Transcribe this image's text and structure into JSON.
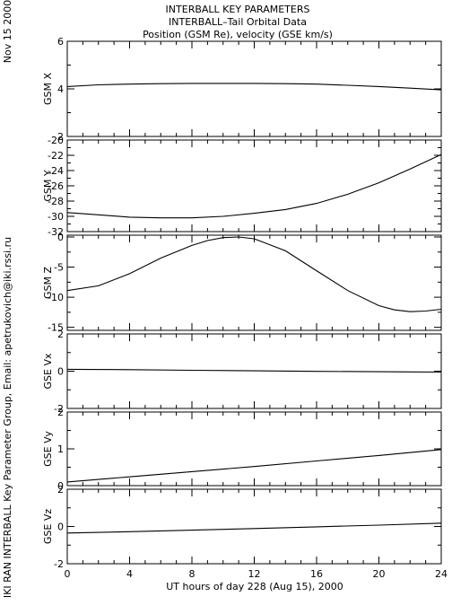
{
  "header": {
    "title": "INTERBALL KEY PARAMETERS",
    "subtitle": "INTERBALL–Tail Orbital Data",
    "subtitle2": "Position (GSM Re), velocity (GSE km/s)"
  },
  "side_date": "Nov 15 2000",
  "side_credit": "IKI RAN INTERBALL Key Parameter Group, Email: apetrukovich@iki.rssi.ru",
  "chart_data": {
    "type": "line",
    "xlabel": "UT hours of day 228 (Aug 15), 2000",
    "xlim": [
      0,
      24
    ],
    "xticks": [
      0,
      4,
      8,
      12,
      16,
      20,
      24
    ],
    "xminor_step": 1,
    "panels": [
      {
        "ylabel": "GSM X",
        "ylim": [
          2,
          6
        ],
        "yticks": [
          2,
          4,
          6
        ],
        "yminor": [
          3,
          5
        ],
        "x": [
          0,
          2,
          4,
          6,
          8,
          10,
          12,
          14,
          16,
          18,
          20,
          22,
          24
        ],
        "y": [
          4.1,
          4.17,
          4.2,
          4.22,
          4.23,
          4.23,
          4.23,
          4.22,
          4.2,
          4.15,
          4.1,
          4.03,
          3.96
        ]
      },
      {
        "ylabel": "GSM Y",
        "ylim": [
          -32,
          -20
        ],
        "yticks": [
          -32,
          -30,
          -28,
          -26,
          -24,
          -22,
          -20
        ],
        "yminor": [
          -31,
          -29,
          -27,
          -25,
          -23,
          -21
        ],
        "x": [
          0,
          2,
          4,
          6,
          8,
          10,
          12,
          14,
          16,
          18,
          20,
          22,
          24
        ],
        "y": [
          -29.5,
          -29.8,
          -30.1,
          -30.2,
          -30.2,
          -30.0,
          -29.6,
          -29.1,
          -28.3,
          -27.1,
          -25.6,
          -23.8,
          -21.9
        ]
      },
      {
        "ylabel": "GSM Z",
        "ylim": [
          -15.5,
          0.3
        ],
        "yticks": [
          -15,
          -10,
          -5,
          0
        ],
        "yminor": [
          -12.5,
          -7.5,
          -2.5
        ],
        "x": [
          0,
          2,
          4,
          6,
          8,
          9,
          10,
          11,
          12,
          14,
          16,
          18,
          20,
          21,
          22,
          23,
          24
        ],
        "y": [
          -8.9,
          -8.1,
          -6.1,
          -3.5,
          -1.4,
          -0.6,
          -0.1,
          0.0,
          -0.3,
          -2.3,
          -5.6,
          -8.9,
          -11.4,
          -12.1,
          -12.4,
          -12.3,
          -12.0
        ]
      },
      {
        "ylabel": "GSE Vx",
        "ylim": [
          -2,
          2
        ],
        "yticks": [
          -2,
          0,
          2
        ],
        "yminor": [
          -1,
          1
        ],
        "x": [
          0,
          4,
          8,
          12,
          16,
          20,
          22,
          24
        ],
        "y": [
          0.1,
          0.08,
          0.05,
          0.02,
          -0.01,
          -0.03,
          -0.04,
          -0.05
        ]
      },
      {
        "ylabel": "GSE Vy",
        "ylim": [
          0,
          2
        ],
        "yticks": [
          0,
          1,
          2
        ],
        "yminor": [
          0.5,
          1.5
        ],
        "x": [
          0,
          4,
          8,
          12,
          16,
          20,
          24
        ],
        "y": [
          0.1,
          0.24,
          0.38,
          0.52,
          0.67,
          0.82,
          0.98
        ]
      },
      {
        "ylabel": "GSE Vz",
        "ylim": [
          -2,
          2
        ],
        "yticks": [
          -2,
          0,
          2
        ],
        "yminor": [
          -1,
          1
        ],
        "x": [
          0,
          4,
          8,
          12,
          16,
          20,
          24
        ],
        "y": [
          -0.35,
          -0.28,
          -0.2,
          -0.11,
          -0.02,
          0.07,
          0.18
        ]
      }
    ]
  }
}
